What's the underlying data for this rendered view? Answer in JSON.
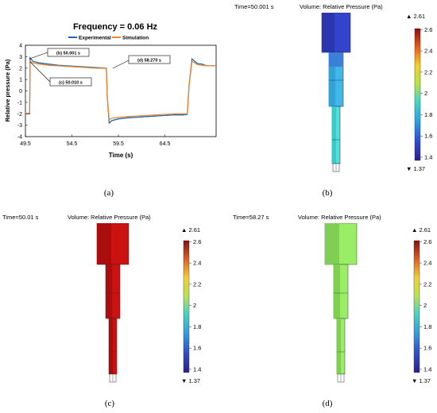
{
  "chart_data": {
    "type": "line",
    "title": "Frequency = 0.06 Hz",
    "xlabel": "Time (s)",
    "ylabel": "Relative pressure (Pa)",
    "xlim": [
      49.5,
      70.0
    ],
    "ylim": [
      -4,
      4
    ],
    "xticks": [
      "49.5",
      "54.5",
      "59.5",
      "64.5"
    ],
    "yticks": [
      "4",
      "3",
      "2",
      "1",
      "0",
      "-1",
      "-2",
      "-3",
      "-4"
    ],
    "grid": false,
    "legend": "top-center",
    "series": [
      {
        "name": "Experimental",
        "color": "#1f66b5",
        "x": [
          49.5,
          49.95,
          50.0,
          50.3,
          51,
          52,
          53,
          54,
          55,
          56,
          57,
          58.2,
          58.3,
          58.5,
          58.8,
          59.5,
          60.5,
          61.5,
          62.5,
          63.5,
          64.5,
          65.5,
          66.5,
          66.9,
          67.1,
          67.4,
          68.0,
          68.5,
          69.0,
          70.0
        ],
        "y": [
          -2.0,
          -2.0,
          2.9,
          2.6,
          2.45,
          2.35,
          2.25,
          2.2,
          2.15,
          2.1,
          2.05,
          2.0,
          -0.5,
          -2.8,
          -2.6,
          -2.45,
          -2.35,
          -2.3,
          -2.25,
          -2.2,
          -2.15,
          -2.1,
          -2.1,
          -2.05,
          0.5,
          2.8,
          2.4,
          2.35,
          2.2,
          2.2
        ]
      },
      {
        "name": "Simulation",
        "color": "#f0862d",
        "x": [
          49.5,
          49.95,
          50.0,
          50.3,
          51,
          52,
          53,
          54,
          55,
          56,
          57,
          58.2,
          58.3,
          58.5,
          58.8,
          59.5,
          60.5,
          61.5,
          62.5,
          63.5,
          64.5,
          65.5,
          66.5,
          66.9,
          67.1,
          67.4,
          68.0,
          68.5,
          69.0,
          70.0
        ],
        "y": [
          -1.95,
          -1.95,
          2.6,
          2.45,
          2.35,
          2.25,
          2.2,
          2.15,
          2.1,
          2.05,
          2.0,
          1.98,
          -0.5,
          -2.5,
          -2.4,
          -2.3,
          -2.25,
          -2.2,
          -2.15,
          -2.1,
          -2.05,
          -2.0,
          -2.0,
          -2.0,
          0.5,
          2.6,
          2.3,
          2.25,
          2.2,
          2.2
        ]
      }
    ],
    "annotations": [
      "(b) 50.001 s",
      "(c) 50.010 s",
      "(d) 58.270 s"
    ]
  },
  "captions": {
    "a": "(a)",
    "b": "(b)",
    "c": "(c)",
    "d": "(d)"
  },
  "panels": {
    "b": {
      "time": "Time=50.001 s",
      "title": "Volume: Relative Pressure (Pa)",
      "max": "▲ 2.61",
      "min": "▼ 1.37",
      "fill": "#3344cc",
      "fill_dark": "#2a36b0"
    },
    "c": {
      "time": "Time=50.01 s",
      "title": "Volume: Relative Pressure (Pa)",
      "max": "▲ 2.61",
      "min": "▼ 1.37",
      "fill": "#cc1111",
      "fill_dark": "#aa0d0d"
    },
    "d": {
      "time": "Time=58.27 s",
      "title": "Volume: Relative Pressure (Pa)",
      "max": "▲ 2.61",
      "min": "▼ 1.37",
      "fill": "#99ee66",
      "fill_dark": "#7fcf52"
    }
  },
  "colorbar": {
    "ticks": [
      "2.6",
      "2.4",
      "2.2",
      "2",
      "1.8",
      "1.6",
      "1.4"
    ]
  }
}
